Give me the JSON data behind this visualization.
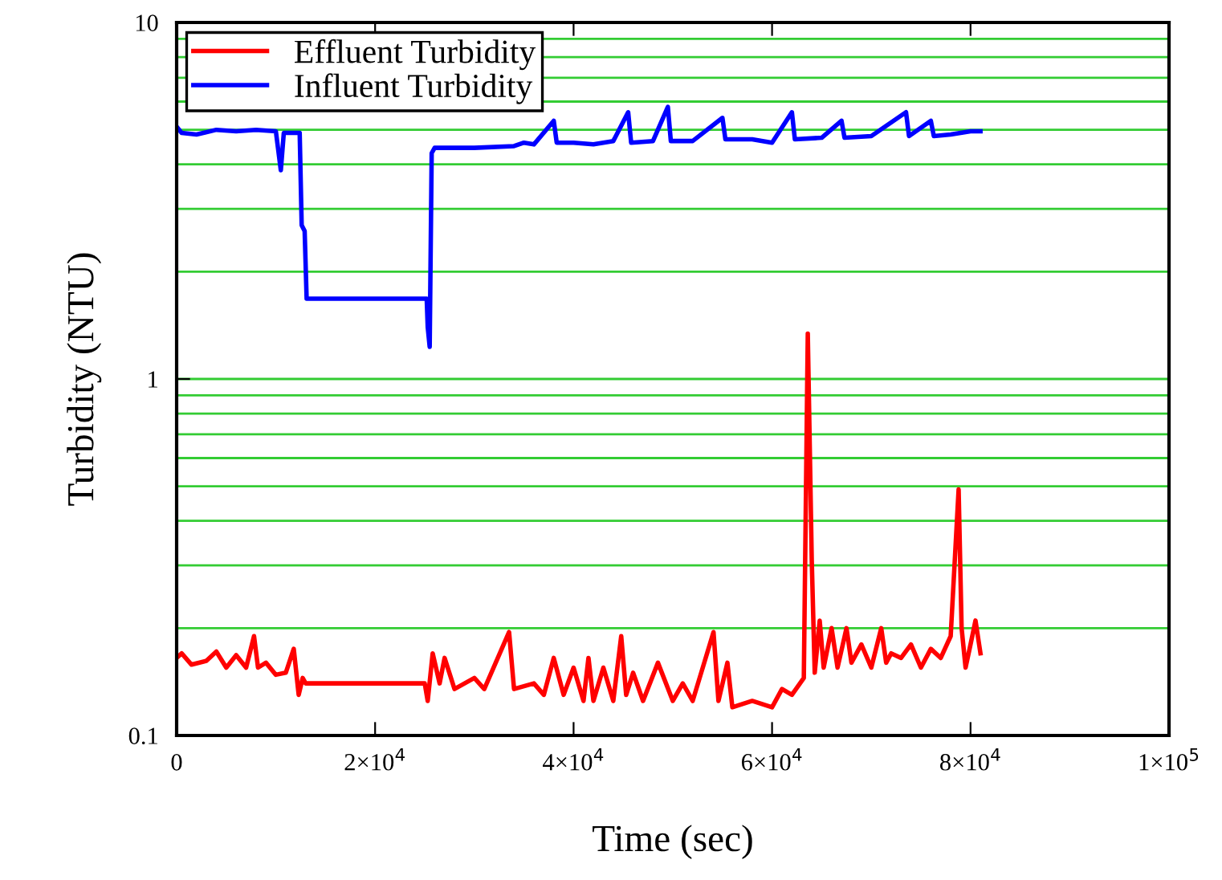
{
  "chart_data": {
    "type": "line",
    "xlabel": "Time (sec)",
    "ylabel": "Turbidity (NTU)",
    "log": "y",
    "grid": "y",
    "legend": "top left",
    "marker": "none",
    "line_style": "solid",
    "xlim": [
      0,
      100000
    ],
    "xticks": [
      0,
      {
        "value": 20000,
        "label": "2×10$^{4}$"
      },
      {
        "value": 40000,
        "label": "4×10$^{4}$"
      },
      {
        "value": 60000,
        "label": "6×10$^{4}$"
      },
      {
        "value": 80000,
        "label": "8×10$^{4}$"
      },
      {
        "value": 100000,
        "label": "1×10$^{5}$"
      }
    ],
    "ylim": [
      0.1,
      10
    ],
    "yticks": [
      0.1,
      {
        "value": 0.2,
        "label": null
      },
      {
        "value": 0.3,
        "label": null
      },
      {
        "value": 0.4,
        "label": null
      },
      {
        "value": 0.5,
        "label": null
      },
      {
        "value": 0.6,
        "label": null
      },
      {
        "value": 0.7,
        "label": null
      },
      {
        "value": 0.8,
        "label": null
      },
      {
        "value": 0.9,
        "label": null
      },
      1,
      {
        "value": 2,
        "label": null
      },
      {
        "value": 3,
        "label": null
      },
      {
        "value": 4,
        "label": null
      },
      {
        "value": 5,
        "label": null
      },
      {
        "value": 6,
        "label": null
      },
      {
        "value": 7,
        "label": null
      },
      {
        "value": 8,
        "label": null
      },
      {
        "value": 9,
        "label": null
      },
      10
    ],
    "series": [
      {
        "name": "Effluent Turbidity",
        "color": "#ff0000",
        "x": [
          0,
          500,
          1500,
          3000,
          4000,
          5000,
          6000,
          7000,
          7800,
          8200,
          9000,
          10000,
          11000,
          11800,
          12300,
          12700,
          13000,
          25000,
          25300,
          25800,
          26500,
          27000,
          28000,
          30000,
          31000,
          33500,
          34000,
          36000,
          37000,
          38000,
          39000,
          40000,
          41000,
          41500,
          42000,
          43000,
          44000,
          44800,
          45300,
          46000,
          47000,
          48500,
          50000,
          51000,
          52000,
          54100,
          54600,
          55500,
          56000,
          58000,
          60000,
          61000,
          62000,
          63200,
          63600,
          64000,
          64300,
          64800,
          65200,
          66000,
          66600,
          67500,
          68000,
          69000,
          70000,
          71000,
          71500,
          72000,
          73000,
          74000,
          75000,
          76000,
          77000,
          78000,
          78800,
          79100,
          79500,
          80000,
          80500,
          81000
        ],
        "values": [
          0.165,
          0.17,
          0.158,
          0.162,
          0.172,
          0.155,
          0.168,
          0.155,
          0.19,
          0.155,
          0.16,
          0.148,
          0.15,
          0.175,
          0.13,
          0.145,
          0.14,
          0.14,
          0.125,
          0.17,
          0.14,
          0.165,
          0.135,
          0.145,
          0.135,
          0.195,
          0.135,
          0.14,
          0.13,
          0.165,
          0.13,
          0.155,
          0.125,
          0.165,
          0.125,
          0.155,
          0.125,
          0.19,
          0.13,
          0.15,
          0.125,
          0.16,
          0.125,
          0.14,
          0.125,
          0.195,
          0.125,
          0.16,
          0.12,
          0.125,
          0.12,
          0.135,
          0.13,
          0.145,
          1.34,
          0.31,
          0.15,
          0.21,
          0.155,
          0.2,
          0.155,
          0.2,
          0.16,
          0.18,
          0.155,
          0.2,
          0.16,
          0.17,
          0.165,
          0.18,
          0.155,
          0.175,
          0.165,
          0.19,
          0.49,
          0.2,
          0.155,
          0.18,
          0.21,
          0.17
        ]
      },
      {
        "name": "Influent Turbidity",
        "color": "#0000ff",
        "x": [
          0,
          500,
          2000,
          4000,
          6000,
          8000,
          10000,
          10500,
          10800,
          12400,
          12600,
          12900,
          13100,
          25200,
          25300,
          25500,
          25700,
          26000,
          30000,
          34000,
          35000,
          36000,
          38000,
          38300,
          40000,
          42000,
          44000,
          45500,
          45800,
          48000,
          49500,
          49800,
          52000,
          55000,
          55300,
          58000,
          60000,
          62000,
          62300,
          65000,
          67000,
          67300,
          70000,
          73500,
          73800,
          76000,
          76300,
          78000,
          80000,
          81000
        ],
        "values": [
          5.1,
          4.9,
          4.85,
          5.0,
          4.95,
          5.0,
          4.95,
          3.85,
          4.9,
          4.9,
          2.7,
          2.6,
          1.68,
          1.68,
          1.4,
          1.23,
          4.3,
          4.45,
          4.45,
          4.5,
          4.6,
          4.55,
          5.3,
          4.6,
          4.6,
          4.55,
          4.65,
          5.6,
          4.6,
          4.65,
          5.8,
          4.65,
          4.65,
          5.4,
          4.7,
          4.7,
          4.6,
          5.6,
          4.7,
          4.75,
          5.3,
          4.75,
          4.8,
          5.6,
          4.8,
          5.3,
          4.8,
          4.85,
          4.95,
          4.95
        ]
      }
    ]
  }
}
